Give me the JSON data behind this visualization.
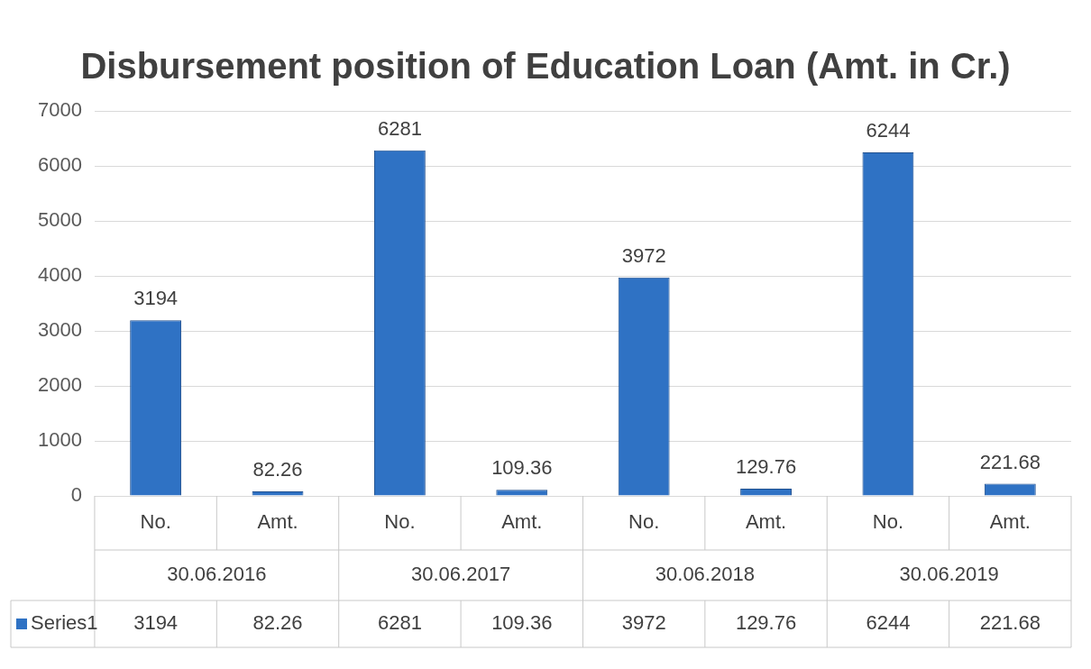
{
  "chart_data": {
    "type": "bar",
    "title": "Disbursement position of Education Loan (Amt. in Cr.)",
    "categories": [
      "No.",
      "Amt.",
      "No.",
      "Amt.",
      "No.",
      "Amt.",
      "No.",
      "Amt."
    ],
    "series": [
      {
        "name": "Series1",
        "color": "#2f72c4",
        "values": [
          3194,
          82.26,
          6281,
          109.36,
          3972,
          129.76,
          6244,
          221.68
        ],
        "value_labels": [
          "3194",
          "82.26",
          "6281",
          "109.36",
          "3972",
          "129.76",
          "6244",
          "221.68"
        ]
      }
    ],
    "annotations": [
      "30.06.2016",
      "30.06.2017",
      "30.06.2018",
      "30.06.2019",
      "3194",
      "82.26",
      "6281",
      "109.36",
      "3972",
      "129.76",
      "6244",
      "221.68"
    ],
    "ylim": [
      0,
      7000
    ],
    "yticks": [
      0,
      1000,
      2000,
      3000,
      4000,
      5000,
      6000,
      7000
    ],
    "grid": "y",
    "data_labels": true,
    "legend": "bottom"
  }
}
